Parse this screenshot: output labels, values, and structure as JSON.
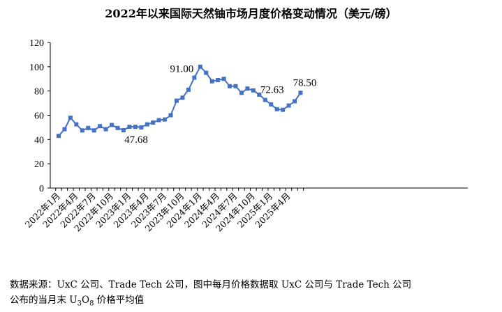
{
  "chart_data": {
    "type": "line",
    "title": "2022年以来国际天然铀市场月度价格变动情况（美元/磅）",
    "xlabel": "",
    "ylabel": "",
    "ylim": [
      0,
      120
    ],
    "yticks": [
      0,
      20,
      40,
      60,
      80,
      100,
      120
    ],
    "grid": false,
    "legend": "none",
    "x": [
      "2022年1月",
      "2022年2月",
      "2022年3月",
      "2022年4月",
      "2022年5月",
      "2022年6月",
      "2022年7月",
      "2022年8月",
      "2022年9月",
      "2022年10月",
      "2022年11月",
      "2022年12月",
      "2023年1月",
      "2023年2月",
      "2023年3月",
      "2023年4月",
      "2023年5月",
      "2023年6月",
      "2023年7月",
      "2023年8月",
      "2023年9月",
      "2023年10月",
      "2023年11月",
      "2023年12月",
      "2024年1月",
      "2024年2月",
      "2024年3月",
      "2024年4月",
      "2024年5月",
      "2024年6月",
      "2024年7月",
      "2024年8月",
      "2024年9月",
      "2024年10月",
      "2024年11月",
      "2024年12月",
      "2025年1月",
      "2025年2月",
      "2025年3月",
      "2025年4月",
      "2025年5月",
      "2025年6月"
    ],
    "x_tick_labels": [
      "2022年1月",
      "2022年4月",
      "2022年7月",
      "2022年10月",
      "2023年1月",
      "2023年4月",
      "2023年7月",
      "2023年10月",
      "2024年1月",
      "2024年4月",
      "2024年7月",
      "2024年10月",
      "2025年1月",
      "2025年4月"
    ],
    "series": [
      {
        "color": "#4472C4",
        "values": [
          43.0,
          48.5,
          58.0,
          52.5,
          47.5,
          49.5,
          47.5,
          51.0,
          48.5,
          52.0,
          49.5,
          47.68,
          50.5,
          50.5,
          50.0,
          52.5,
          54.0,
          56.0,
          56.5,
          60.0,
          72.0,
          74.5,
          81.0,
          91.0,
          100.0,
          95.0,
          88.0,
          89.0,
          90.0,
          84.0,
          84.0,
          78.5,
          82.0,
          80.5,
          77.0,
          72.63,
          69.0,
          65.0,
          64.5,
          68.0,
          71.5,
          78.5
        ]
      }
    ],
    "annotations": [
      {
        "index": 11,
        "label": "47.68"
      },
      {
        "index": 23,
        "label": "91.00"
      },
      {
        "index": 35,
        "label": "72.63"
      },
      {
        "index": 41,
        "label": "78.50"
      }
    ]
  },
  "footer": {
    "line1": "数据来源：UxC 公司、Trade Tech 公司，图中每月价格数据取 UxC 公司与 Trade Tech 公司",
    "line2_pre": "公布的当月末 U",
    "line2_sub1": "3",
    "line2_mid": "O",
    "line2_sub2": "8",
    "line2_post": " 价格平均值"
  }
}
